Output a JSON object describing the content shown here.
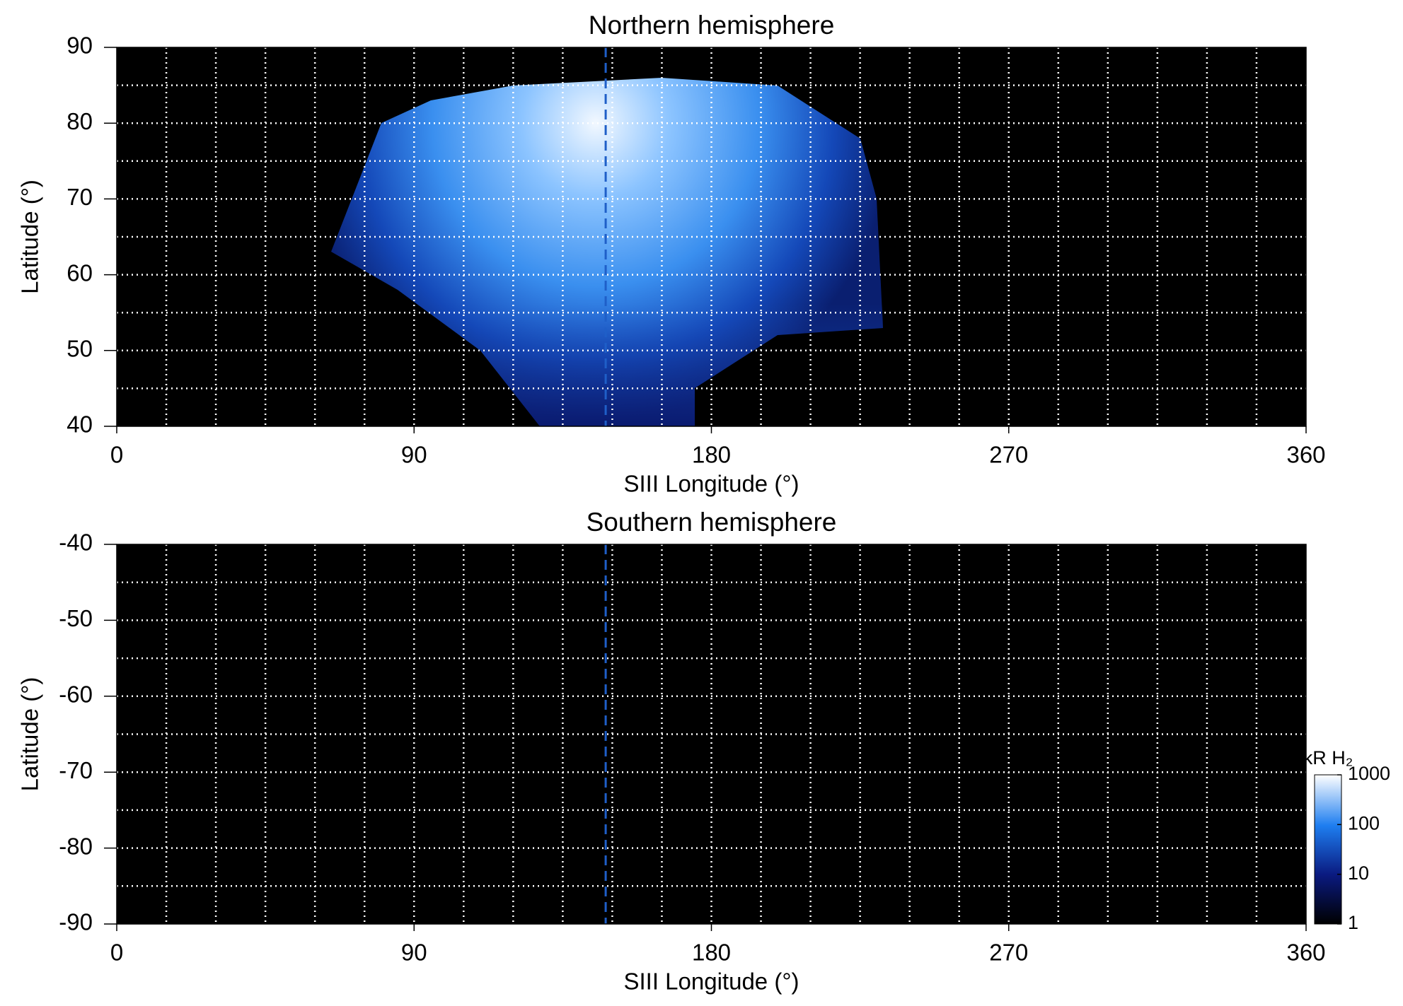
{
  "chart_data": [
    {
      "type": "heatmap",
      "title": "Northern hemisphere",
      "xlabel": "SIII Longitude (°)",
      "ylabel": "Latitude (°)",
      "xlim": [
        0,
        360
      ],
      "xticks": [
        0,
        90,
        180,
        270,
        360
      ],
      "xgrid": [
        15,
        30,
        45,
        60,
        75,
        90,
        105,
        120,
        135,
        150,
        165,
        180,
        195,
        210,
        225,
        240,
        255,
        270,
        285,
        300,
        315,
        330,
        345
      ],
      "ylim": [
        40,
        90
      ],
      "yticks": [
        40,
        50,
        60,
        70,
        80,
        90
      ],
      "ygrid": [
        45,
        50,
        55,
        60,
        65,
        70,
        75,
        80,
        85
      ],
      "reference_x": 148,
      "reference_color": "#1f5fc8",
      "grid_color": "#ffffff",
      "background": "#000000"
    },
    {
      "type": "heatmap",
      "title": "Southern hemisphere",
      "xlabel": "SIII Longitude (°)",
      "ylabel": "Latitude (°)",
      "xlim": [
        0,
        360
      ],
      "xticks": [
        0,
        90,
        180,
        270,
        360
      ],
      "xgrid": [
        15,
        30,
        45,
        60,
        75,
        90,
        105,
        120,
        135,
        150,
        165,
        180,
        195,
        210,
        225,
        240,
        255,
        270,
        285,
        300,
        315,
        330,
        345
      ],
      "ylim": [
        -90,
        -40
      ],
      "yticks": [
        -90,
        -80,
        -70,
        -60,
        -50,
        -40
      ],
      "ygrid": [
        -85,
        -80,
        -75,
        -70,
        -65,
        -60,
        -55,
        -50,
        -45
      ],
      "reference_x": 148,
      "reference_color": "#1f5fc8",
      "grid_color": "#ffffff",
      "background": "#000000",
      "colorbar": {
        "label": "kR H₂",
        "scale": "log",
        "lim": [
          1,
          1000
        ],
        "ticks": [
          1,
          10,
          100,
          1000
        ]
      }
    }
  ]
}
